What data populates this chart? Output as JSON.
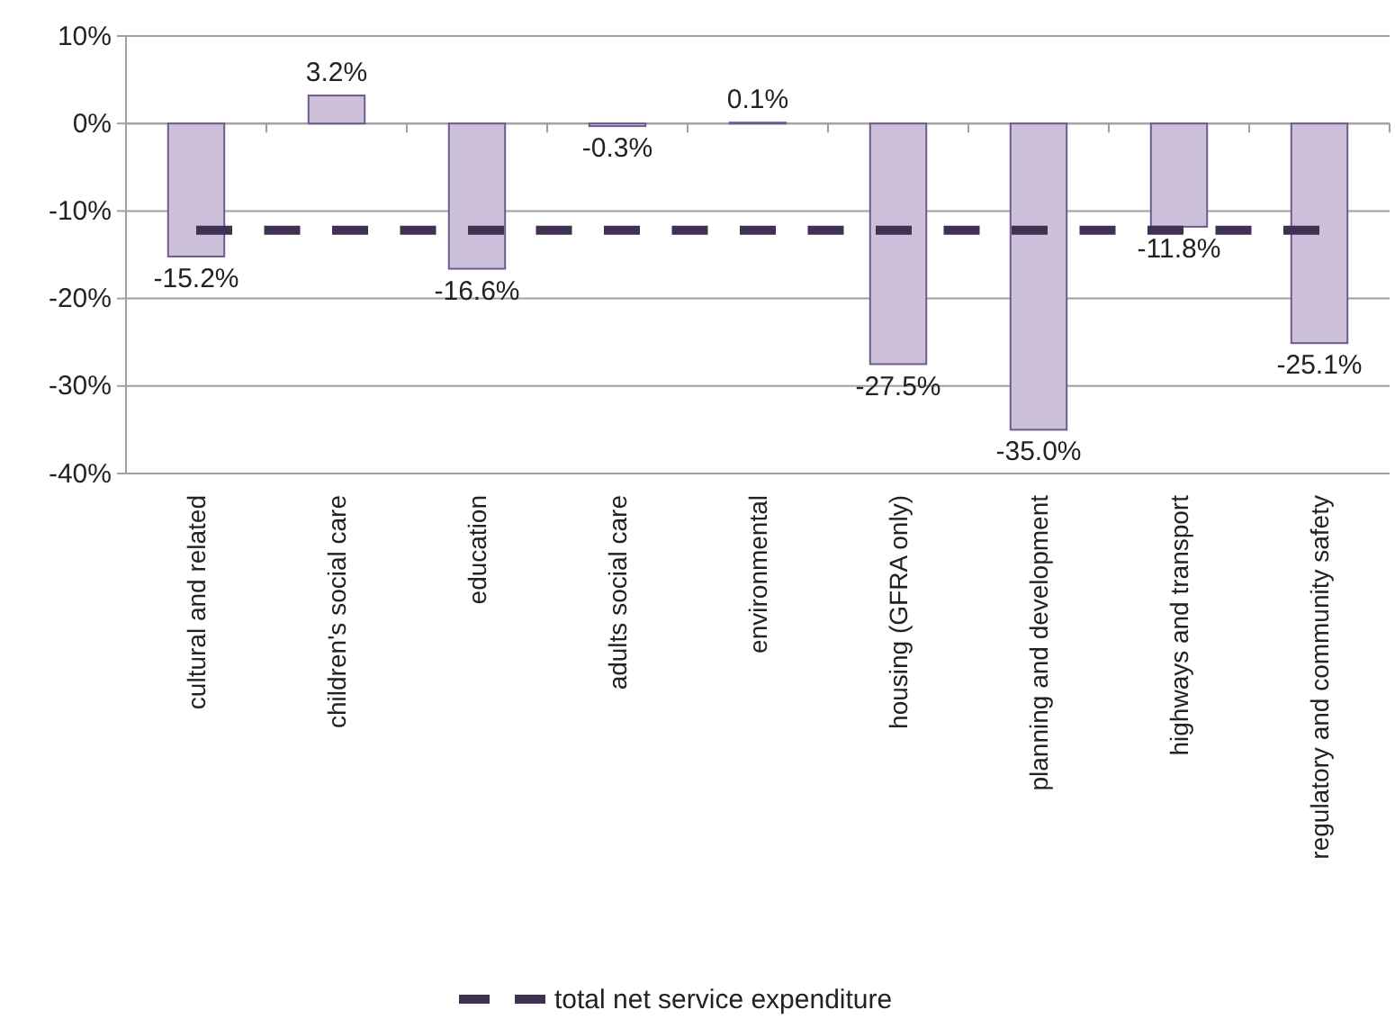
{
  "chart_data": {
    "type": "bar",
    "categories": [
      "cultural and related",
      "children's social care",
      "education",
      "adults social care",
      "environmental",
      "housing (GFRA only)",
      "planning and development",
      "highways and transport",
      "regulatory and community safety"
    ],
    "series": [
      {
        "color": "#ccc0da",
        "values": [
          -15.2,
          3.2,
          -16.6,
          -0.3,
          0.1,
          -27.5,
          -35.0,
          -11.8,
          -25.1
        ],
        "value_labels": [
          "-15.2%",
          "3.2%",
          "-16.6%",
          "-0.3%",
          "0.1%",
          "-27.5%",
          "-35.0%",
          "-11.8%",
          "-25.1%"
        ]
      },
      {
        "type": "line",
        "name": "total net service expenditure",
        "color": "#403152",
        "line_style": "dashed",
        "values": [
          -12.2,
          -12.2,
          -12.2,
          -12.2,
          -12.2,
          -12.2,
          -12.2,
          -12.2,
          -12.2
        ]
      }
    ],
    "ylim": [
      -40,
      10
    ],
    "yticks": [
      {
        "value": 10,
        "label": "10%"
      },
      {
        "value": 0,
        "label": "0%"
      },
      {
        "value": -10,
        "label": "-10%"
      },
      {
        "value": -20,
        "label": "-20%"
      },
      {
        "value": -30,
        "label": "-30%"
      },
      {
        "value": -40,
        "label": "-40%"
      }
    ],
    "grid": "y",
    "legend": "bottom",
    "marker": "none"
  }
}
